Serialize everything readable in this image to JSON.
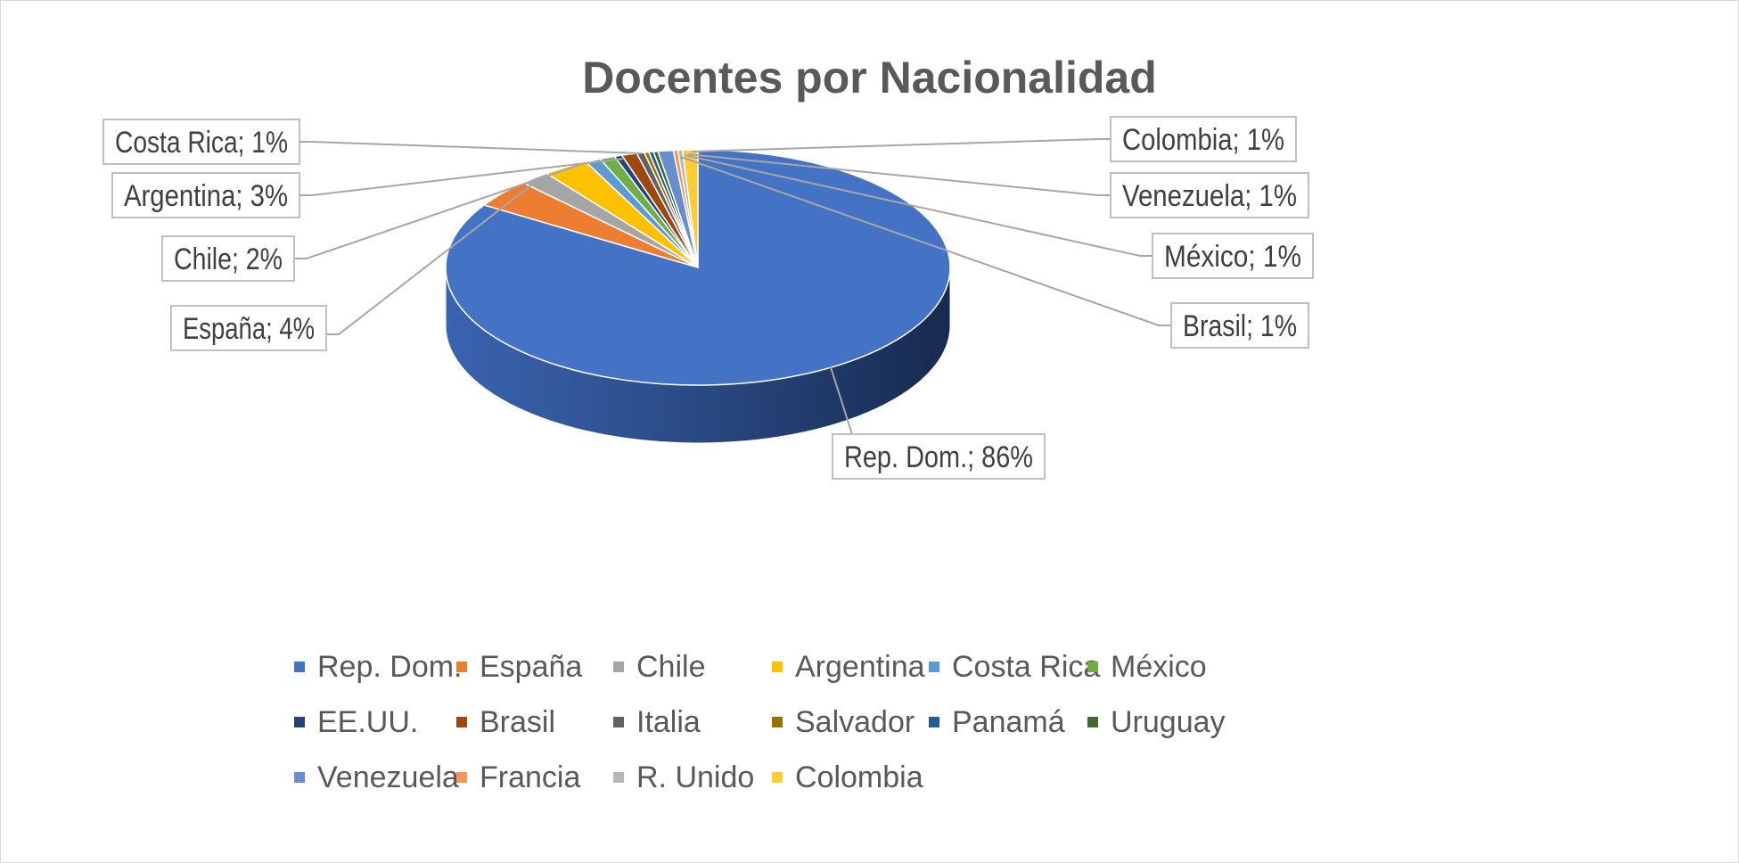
{
  "chart_data": {
    "type": "pie",
    "title": "Docentes por Nacionalidad",
    "slices": [
      {
        "label": "Rep. Dom.",
        "value": 86,
        "color": "#4472C4"
      },
      {
        "label": "España",
        "value": 4,
        "color": "#ED7D31"
      },
      {
        "label": "Chile",
        "value": 2,
        "color": "#A5A5A5"
      },
      {
        "label": "Argentina",
        "value": 3,
        "color": "#FFC000"
      },
      {
        "label": "Costa Rica",
        "value": 1,
        "color": "#5B9BD5"
      },
      {
        "label": "México",
        "value": 1,
        "color": "#70AD47"
      },
      {
        "label": "EE.UU.",
        "value": 0.5,
        "color": "#264478"
      },
      {
        "label": "Brasil",
        "value": 1,
        "color": "#9E480E"
      },
      {
        "label": "Italia",
        "value": 0.5,
        "color": "#636363"
      },
      {
        "label": "Salvador",
        "value": 0.3,
        "color": "#997300"
      },
      {
        "label": "Panamá",
        "value": 0.3,
        "color": "#255E91"
      },
      {
        "label": "Uruguay",
        "value": 0.3,
        "color": "#43682B"
      },
      {
        "label": "Venezuela",
        "value": 1,
        "color": "#698ED0"
      },
      {
        "label": "Francia",
        "value": 0.3,
        "color": "#F1975A"
      },
      {
        "label": "R. Unido",
        "value": 0.3,
        "color": "#B7B7B7"
      },
      {
        "label": "Colombia",
        "value": 1,
        "color": "#FFCD33"
      }
    ],
    "data_labels": [
      {
        "text": "Costa Rica; 1%",
        "side": "left"
      },
      {
        "text": "Argentina; 3%",
        "side": "left"
      },
      {
        "text": "Chile; 2%",
        "side": "left"
      },
      {
        "text": "España; 4%",
        "side": "left"
      },
      {
        "text": "Colombia; 1%",
        "side": "right"
      },
      {
        "text": "Venezuela; 1%",
        "side": "right"
      },
      {
        "text": "México; 1%",
        "side": "right"
      },
      {
        "text": "Brasil; 1%",
        "side": "right"
      },
      {
        "text": "Rep. Dom.; 86%",
        "side": "bottom"
      }
    ],
    "legend_position": "bottom",
    "style": "3d"
  }
}
